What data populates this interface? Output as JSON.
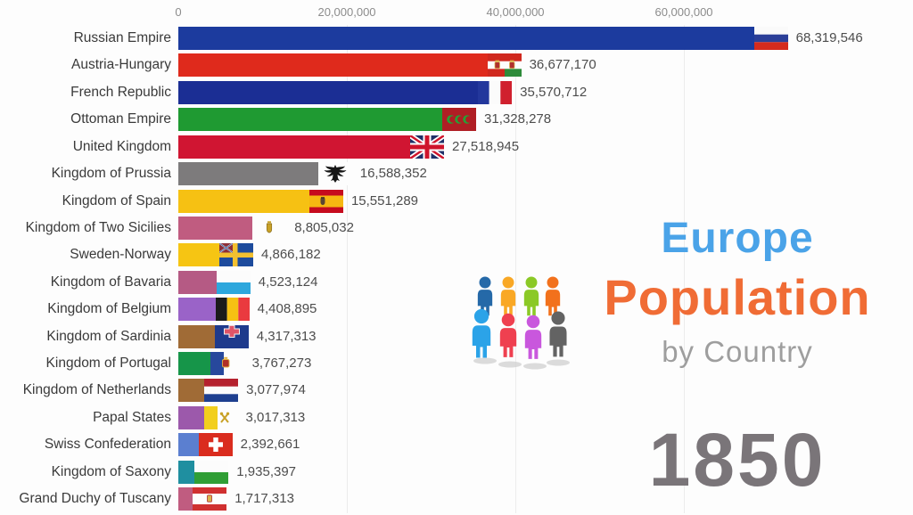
{
  "title": {
    "line1": "Europe",
    "line2": "Population",
    "line3": "by Country"
  },
  "year": "1850",
  "colors": {
    "title_line1": "#4aa3e8",
    "title_line2": "#f06c35",
    "title_line3": "#9e9e9e",
    "year": "#7a7579",
    "axis_text": "#8c8c8c",
    "label_text": "#3a3a3a",
    "value_text": "#4d4d4d",
    "gridline": "#ececec",
    "background": "#fdfdfd"
  },
  "branding": {
    "people_icon_back_colors": [
      "#2569a8",
      "#f9a825",
      "#8bc926",
      "#f2711c"
    ],
    "people_icon_front_colors": [
      "#2ba3e8",
      "#ef4050",
      "#c957dd",
      "#636363"
    ]
  },
  "chart_data": {
    "type": "bar",
    "orientation": "horizontal",
    "title": "Europe Population by Country",
    "subtitle_year": "1850",
    "xlabel": "Population",
    "ylabel": "Country",
    "x_axis": {
      "range": [
        0,
        87000000
      ],
      "grid": true,
      "ticks": [
        {
          "label": "0",
          "value": 0
        },
        {
          "label": "20,000,000",
          "value": 20000000
        },
        {
          "label": "40,000,000",
          "value": 40000000
        },
        {
          "label": "60,000,000",
          "value": 60000000
        }
      ]
    },
    "rows": [
      {
        "label": "Russian Empire",
        "value": 68319546,
        "value_label": "68,319,546",
        "color": "#1c3b9e",
        "flag": "russian-empire"
      },
      {
        "label": "Austria-Hungary",
        "value": 36677170,
        "value_label": "36,677,170",
        "color": "#df2a1c",
        "flag": "austria-hungary"
      },
      {
        "label": "French Republic",
        "value": 35570712,
        "value_label": "35,570,712",
        "color": "#1b2e94",
        "flag": "french-republic"
      },
      {
        "label": "Ottoman Empire",
        "value": 31328278,
        "value_label": "31,328,278",
        "color": "#1f9a32",
        "flag": "ottoman-empire"
      },
      {
        "label": "United Kingdom",
        "value": 27518945,
        "value_label": "27,518,945",
        "color": "#d01532",
        "flag": "united-kingdom"
      },
      {
        "label": "Kingdom of Prussia",
        "value": 16588352,
        "value_label": "16,588,352",
        "color": "#7d7b7c",
        "flag": "prussia"
      },
      {
        "label": "Kingdom of Spain",
        "value": 15551289,
        "value_label": "15,551,289",
        "color": "#f6c113",
        "flag": "spain"
      },
      {
        "label": "Kingdom of Two Sicilies",
        "value": 8805032,
        "value_label": "8,805,032",
        "color": "#c05c80",
        "flag": "two-sicilies"
      },
      {
        "label": "Sweden-Norway",
        "value": 4866182,
        "value_label": "4,866,182",
        "color": "#f6c513",
        "flag": "sweden-norway"
      },
      {
        "label": "Kingdom of Bavaria",
        "value": 4523124,
        "value_label": "4,523,124",
        "color": "#b55a84",
        "flag": "bavaria"
      },
      {
        "label": "Kingdom of Belgium",
        "value": 4408895,
        "value_label": "4,408,895",
        "color": "#9a63c8",
        "flag": "belgium"
      },
      {
        "label": "Kingdom of Sardinia",
        "value": 4317313,
        "value_label": "4,317,313",
        "color": "#a06b36",
        "flag": "sardinia"
      },
      {
        "label": "Kingdom of Portugal",
        "value": 3767273,
        "value_label": "3,767,273",
        "color": "#169549",
        "flag": "portugal"
      },
      {
        "label": "Kingdom of Netherlands",
        "value": 3077974,
        "value_label": "3,077,974",
        "color": "#a06b36",
        "flag": "netherlands"
      },
      {
        "label": "Papal States",
        "value": 3017313,
        "value_label": "3,017,313",
        "color": "#9c59ab",
        "flag": "papal-states"
      },
      {
        "label": "Swiss Confederation",
        "value": 2392661,
        "value_label": "2,392,661",
        "color": "#5b7fd0",
        "flag": "switzerland"
      },
      {
        "label": "Kingdom of Saxony",
        "value": 1935397,
        "value_label": "1,935,397",
        "color": "#1f8fa0",
        "flag": "saxony"
      },
      {
        "label": "Grand Duchy of Tuscany",
        "value": 1717313,
        "value_label": "1,717,313",
        "color": "#c05c80",
        "flag": "tuscany"
      }
    ]
  }
}
